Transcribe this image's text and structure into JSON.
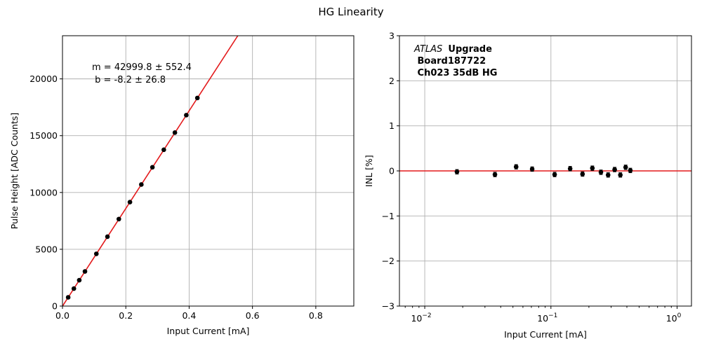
{
  "figure": {
    "title": "HG Linearity"
  },
  "chart_data": [
    {
      "type": "scatter",
      "name": "linearity-fit",
      "xlabel": "Input Current [mA]",
      "ylabel": "Pulse Height [ADC Counts]",
      "xlim": [
        0,
        0.92
      ],
      "ylim": [
        0,
        23800
      ],
      "xticks": [
        0,
        0.2,
        0.4,
        0.6,
        0.8
      ],
      "xtick_labels": [
        "0.0",
        "0.2",
        "0.4",
        "0.6",
        "0.8"
      ],
      "yticks": [
        0,
        5000,
        10000,
        15000,
        20000
      ],
      "ytick_labels": [
        "0",
        "5000",
        "10000",
        "15000",
        "20000"
      ],
      "grid": true,
      "points": {
        "x": [
          0.018,
          0.036,
          0.053,
          0.071,
          0.107,
          0.142,
          0.178,
          0.213,
          0.249,
          0.284,
          0.32,
          0.355,
          0.391,
          0.426
        ],
        "y": [
          770,
          1540,
          2280,
          3050,
          4600,
          6110,
          7660,
          9150,
          10700,
          12220,
          13760,
          15270,
          16810,
          18320
        ]
      },
      "marker_color": "#000000",
      "fit": {
        "slope": 42999.8,
        "intercept": -8.2,
        "color": "#e31a1c"
      },
      "annotation": [
        "m = 42999.8 ± 552.4",
        " b = -8.2 ± 26.8"
      ]
    },
    {
      "type": "scatter",
      "name": "inl",
      "xscale": "log",
      "xlabel": "Input Current [mA]",
      "ylabel": "INL [%]",
      "xlim": [
        0.0063,
        1.3
      ],
      "ylim": [
        -3,
        3
      ],
      "xticks": [
        0.01,
        0.1,
        1
      ],
      "xtick_labels": [
        [
          "10",
          "−2"
        ],
        [
          "10",
          "−1"
        ],
        [
          "10",
          "0"
        ]
      ],
      "yticks": [
        -3,
        -2,
        -1,
        0,
        1,
        2,
        3
      ],
      "ytick_labels": [
        "−3",
        "−2",
        "−1",
        "0",
        "1",
        "2",
        "3"
      ],
      "grid": true,
      "points": {
        "x": [
          0.018,
          0.036,
          0.053,
          0.071,
          0.107,
          0.142,
          0.178,
          0.213,
          0.249,
          0.284,
          0.32,
          0.355,
          0.391,
          0.426
        ],
        "y": [
          -0.02,
          -0.08,
          0.09,
          0.04,
          -0.08,
          0.05,
          -0.07,
          0.06,
          -0.03,
          -0.09,
          0.03,
          -0.09,
          0.08,
          0.01
        ],
        "err": [
          0.05,
          0.05,
          0.05,
          0.05,
          0.05,
          0.05,
          0.05,
          0.05,
          0.05,
          0.05,
          0.05,
          0.05,
          0.05,
          0.05
        ]
      },
      "marker_color": "#000000",
      "reference_line": {
        "y": 0,
        "color": "#e31a1c"
      },
      "annotation": {
        "atlas": "ATLAS",
        "upgrade": "Upgrade",
        "board": " Board187722",
        "channel": " Ch023 35dB HG"
      }
    }
  ]
}
